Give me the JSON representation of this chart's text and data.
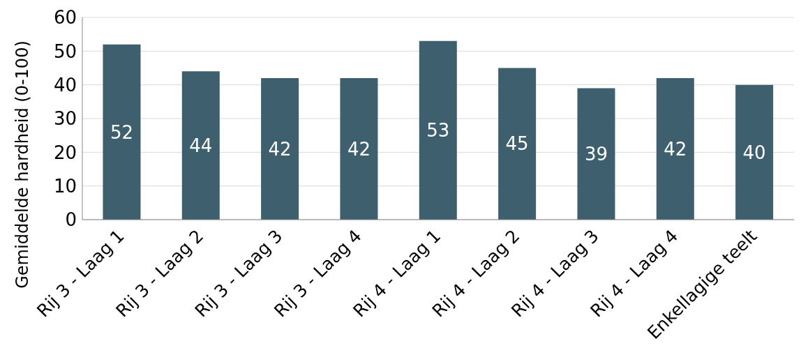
{
  "chart_data": {
    "type": "bar",
    "ylabel": "Gemiddelde hardheid (0-100)",
    "categories": [
      "Rij 3 - Laag 1",
      "Rij 3 - Laag 2",
      "Rij 3 - Laag 3",
      "Rij 3 - Laag 4",
      "Rij 4 - Laag 1",
      "Rij 4 - Laag 2",
      "Rij 4 - Laag 3",
      "Rij 4 - Laag 4",
      "Enkellagige teelt"
    ],
    "values": [
      52,
      44,
      42,
      42,
      53,
      45,
      39,
      42,
      40
    ],
    "color": "#3e5f6e",
    "data_labels": true,
    "ylim": [
      0,
      60
    ],
    "yticks": [
      0,
      10,
      20,
      30,
      40,
      50,
      60
    ],
    "grid": "y"
  }
}
